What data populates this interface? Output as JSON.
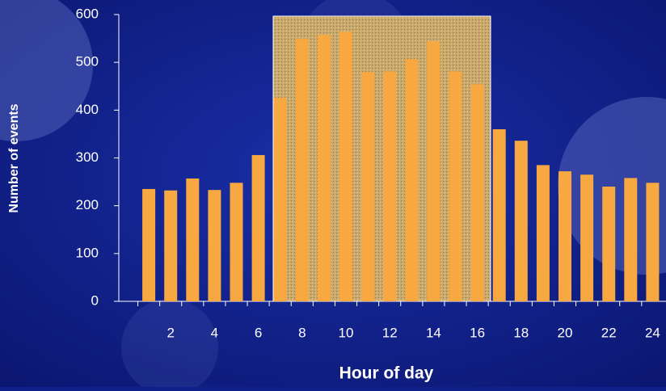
{
  "chart_data": {
    "type": "bar",
    "xlabel": "Hour of day",
    "ylabel": "Number of events",
    "categories": [
      null,
      "2",
      null,
      "4",
      null,
      "6",
      null,
      "8",
      null,
      "10",
      null,
      "12",
      null,
      "14",
      null,
      "16",
      null,
      "18",
      null,
      "20",
      null,
      "22",
      null,
      "24"
    ],
    "values": [
      235,
      232,
      257,
      233,
      248,
      306,
      426,
      549,
      557,
      564,
      480,
      481,
      507,
      544,
      481,
      454,
      360,
      336,
      285,
      272,
      265,
      240,
      258,
      248
    ],
    "color": "#f7a840",
    "ylim": [
      0,
      600
    ],
    "yticks": [
      0,
      100,
      200,
      300,
      400,
      500,
      600
    ]
  }
}
